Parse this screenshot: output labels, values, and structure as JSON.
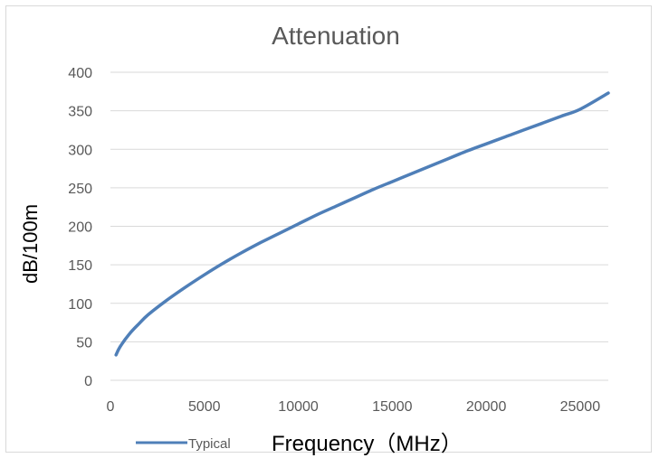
{
  "chart_data": {
    "type": "line",
    "title": "Attenuation",
    "xlabel": "Frequency（MHz）",
    "ylabel": "dB/100m",
    "xlim": [
      0,
      26500
    ],
    "ylim": [
      0,
      400
    ],
    "x_ticks": [
      0,
      5000,
      10000,
      15000,
      20000,
      25000
    ],
    "y_ticks": [
      0,
      50,
      100,
      150,
      200,
      250,
      300,
      350,
      400
    ],
    "grid": true,
    "legend_position": "bottom-left",
    "series": [
      {
        "name": "Typical",
        "color": "#4f7fb8",
        "x": [
          300,
          500,
          1000,
          1500,
          2000,
          3000,
          4000,
          5000,
          6000,
          7000,
          8000,
          9000,
          10000,
          11000,
          12000,
          13000,
          14000,
          15000,
          16000,
          17000,
          18000,
          19000,
          20000,
          21000,
          22000,
          23000,
          24000,
          25000,
          26500
        ],
        "y": [
          33,
          43,
          60,
          73,
          85,
          104,
          121,
          137,
          152,
          166,
          179,
          191,
          203,
          215,
          226,
          237,
          248,
          258,
          268,
          278,
          288,
          298,
          307,
          316,
          325,
          334,
          343,
          352,
          373
        ]
      }
    ]
  }
}
